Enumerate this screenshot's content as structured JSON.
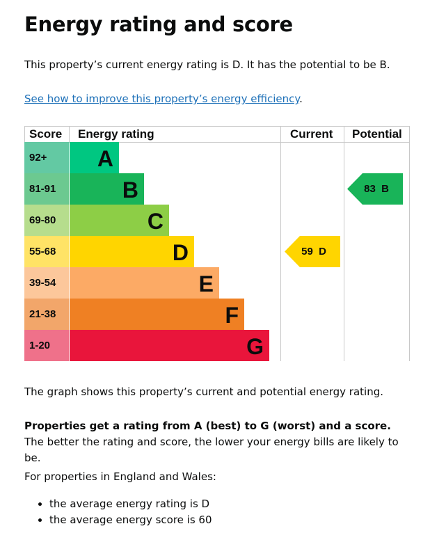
{
  "title": "Energy rating and score",
  "intro": "This property’s current energy rating is D. It has the potential to be B.",
  "link": "See how to improve this property’s energy efficiency",
  "link_suffix": ".",
  "chart_data": {
    "type": "table",
    "headers": {
      "score": "Score",
      "rating": "Energy rating",
      "current": "Current",
      "potential": "Potential"
    },
    "bands": [
      {
        "score": "92+",
        "letter": "A",
        "color": "#00c781",
        "score_color": "#63c9a3"
      },
      {
        "score": "81-91",
        "letter": "B",
        "color": "#19b459",
        "score_color": "#6cc990"
      },
      {
        "score": "69-80",
        "letter": "C",
        "color": "#8dce46",
        "score_color": "#b6dd8d"
      },
      {
        "score": "55-68",
        "letter": "D",
        "color": "#ffd500",
        "score_color": "#ffe366"
      },
      {
        "score": "39-54",
        "letter": "E",
        "color": "#fcaa65",
        "score_color": "#fcc79b"
      },
      {
        "score": "21-38",
        "letter": "F",
        "color": "#ef8023",
        "score_color": "#f2a66a"
      },
      {
        "score": "1-20",
        "letter": "G",
        "color": "#e9153b",
        "score_color": "#ef718a"
      }
    ],
    "current": {
      "score": 59,
      "letter": "D",
      "label": "59  D",
      "color": "#ffd500"
    },
    "potential": {
      "score": 83,
      "letter": "B",
      "label": "83  B",
      "color": "#19b459"
    }
  },
  "graph_note": "The graph shows this property’s current and potential energy rating.",
  "rating_bold": "Properties get a rating from A (best) to G (worst) and a score.",
  "rating_rest": " The better the rating and score, the lower your energy bills are likely to be.",
  "region_intro": "For properties in England and Wales:",
  "averages": [
    "the average energy rating is D",
    "the average energy score is 60"
  ]
}
